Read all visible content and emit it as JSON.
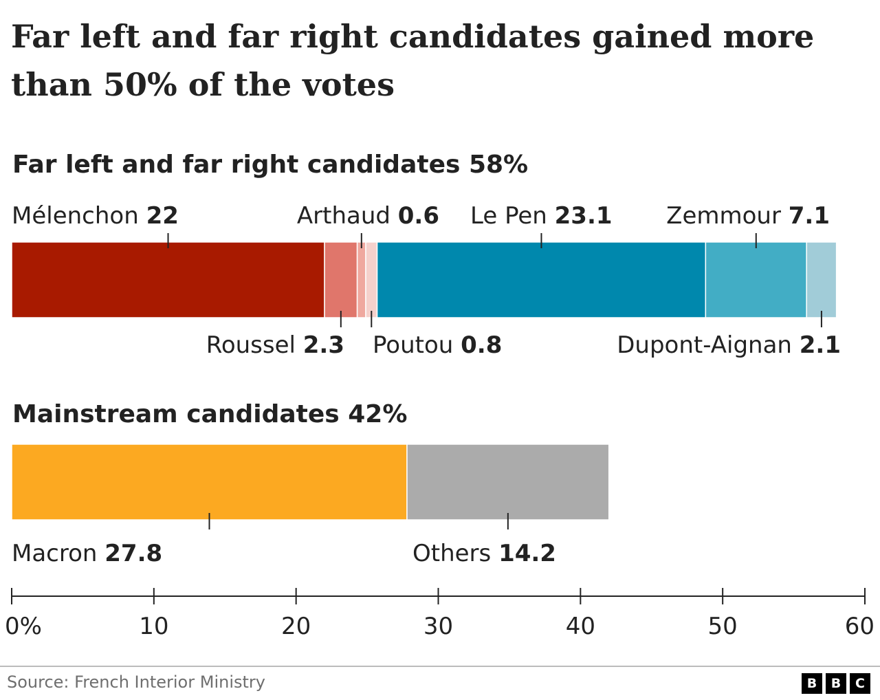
{
  "title": "Far left and far right candidates gained more than 50% of the votes",
  "chart_data": [
    {
      "type": "bar",
      "orientation": "horizontal-stacked",
      "group_label": "Far left and far right candidates 58%",
      "series": [
        {
          "name": "Mélenchon",
          "value": 22,
          "display": "22",
          "color": "#a81a00",
          "label_side": "top"
        },
        {
          "name": "Roussel",
          "value": 2.3,
          "display": "2.3",
          "color": "#e0766b",
          "label_side": "bottom"
        },
        {
          "name": "Arthaud",
          "value": 0.6,
          "display": "0.6",
          "color": "#efa89f",
          "label_side": "top"
        },
        {
          "name": "Poutou",
          "value": 0.8,
          "display": "0.8",
          "color": "#f5d1cc",
          "label_side": "bottom"
        },
        {
          "name": "Le Pen",
          "value": 23.1,
          "display": "23.1",
          "color": "#0088ad",
          "label_side": "top"
        },
        {
          "name": "Zemmour",
          "value": 7.1,
          "display": "7.1",
          "color": "#42adc5",
          "label_side": "top"
        },
        {
          "name": "Dupont-Aignan",
          "value": 2.1,
          "display": "2.1",
          "color": "#a1ccd8",
          "label_side": "bottom"
        }
      ]
    },
    {
      "type": "bar",
      "orientation": "horizontal-stacked",
      "group_label": "Mainstream candidates 42%",
      "series": [
        {
          "name": "Macron",
          "value": 27.8,
          "display": "27.8",
          "color": "#fca921",
          "label_side": "bottom"
        },
        {
          "name": "Others",
          "value": 14.2,
          "display": "14.2",
          "color": "#ababab",
          "label_side": "bottom"
        }
      ]
    }
  ],
  "axis": {
    "xlim": [
      0,
      60
    ],
    "ticks": [
      0,
      10,
      20,
      30,
      40,
      50,
      60
    ],
    "tick_labels": [
      "0%",
      "10",
      "20",
      "30",
      "40",
      "50",
      "60"
    ]
  },
  "source": "Source: French Interior Ministry",
  "logo": [
    "B",
    "B",
    "C"
  ]
}
